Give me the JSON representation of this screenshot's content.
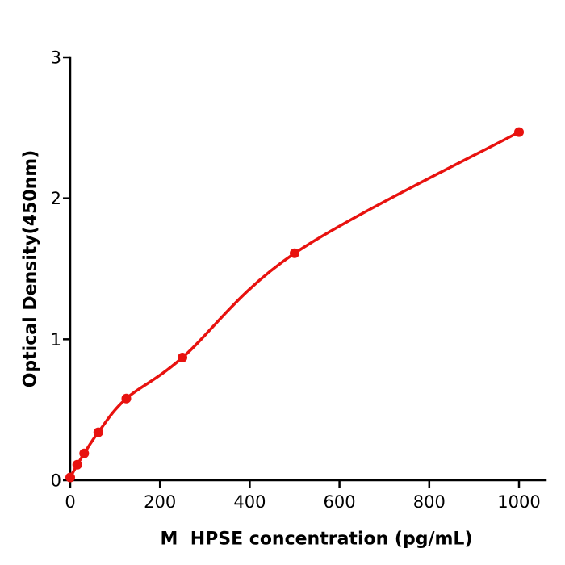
{
  "figure": {
    "background": "#ffffff"
  },
  "chart_data": {
    "type": "scatter",
    "title": "",
    "xlabel": "M  HPSE concentration (pg/mL)",
    "ylabel": "Optical Density(450nm)",
    "x": [
      0,
      15.6,
      31.2,
      62.5,
      125,
      250,
      500,
      1000
    ],
    "y": [
      0.02,
      0.11,
      0.19,
      0.34,
      0.58,
      0.87,
      1.61,
      2.47
    ],
    "xticks": [
      0,
      200,
      400,
      600,
      800,
      1000
    ],
    "yticks": [
      0,
      1,
      2,
      3
    ],
    "xlim": [
      0,
      1060
    ],
    "ylim": [
      0,
      3
    ],
    "grid": false,
    "legend": null,
    "fit_curve": true,
    "series_color": "#e8120f",
    "axis_color": "#000000"
  }
}
